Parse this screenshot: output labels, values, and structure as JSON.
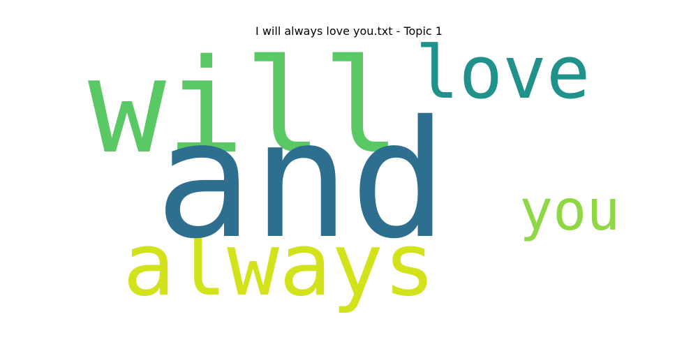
{
  "title": "I will always love you.txt - Topic 1",
  "words": {
    "will": {
      "text": "will",
      "color": "#5ac864"
    },
    "love": {
      "text": "love",
      "color": "#21918c"
    },
    "always": {
      "text": "always",
      "color": "#d2e21b"
    },
    "you": {
      "text": "you",
      "color": "#8fd744"
    },
    "and": {
      "text": "and",
      "color": "#2e6e8e"
    }
  }
}
